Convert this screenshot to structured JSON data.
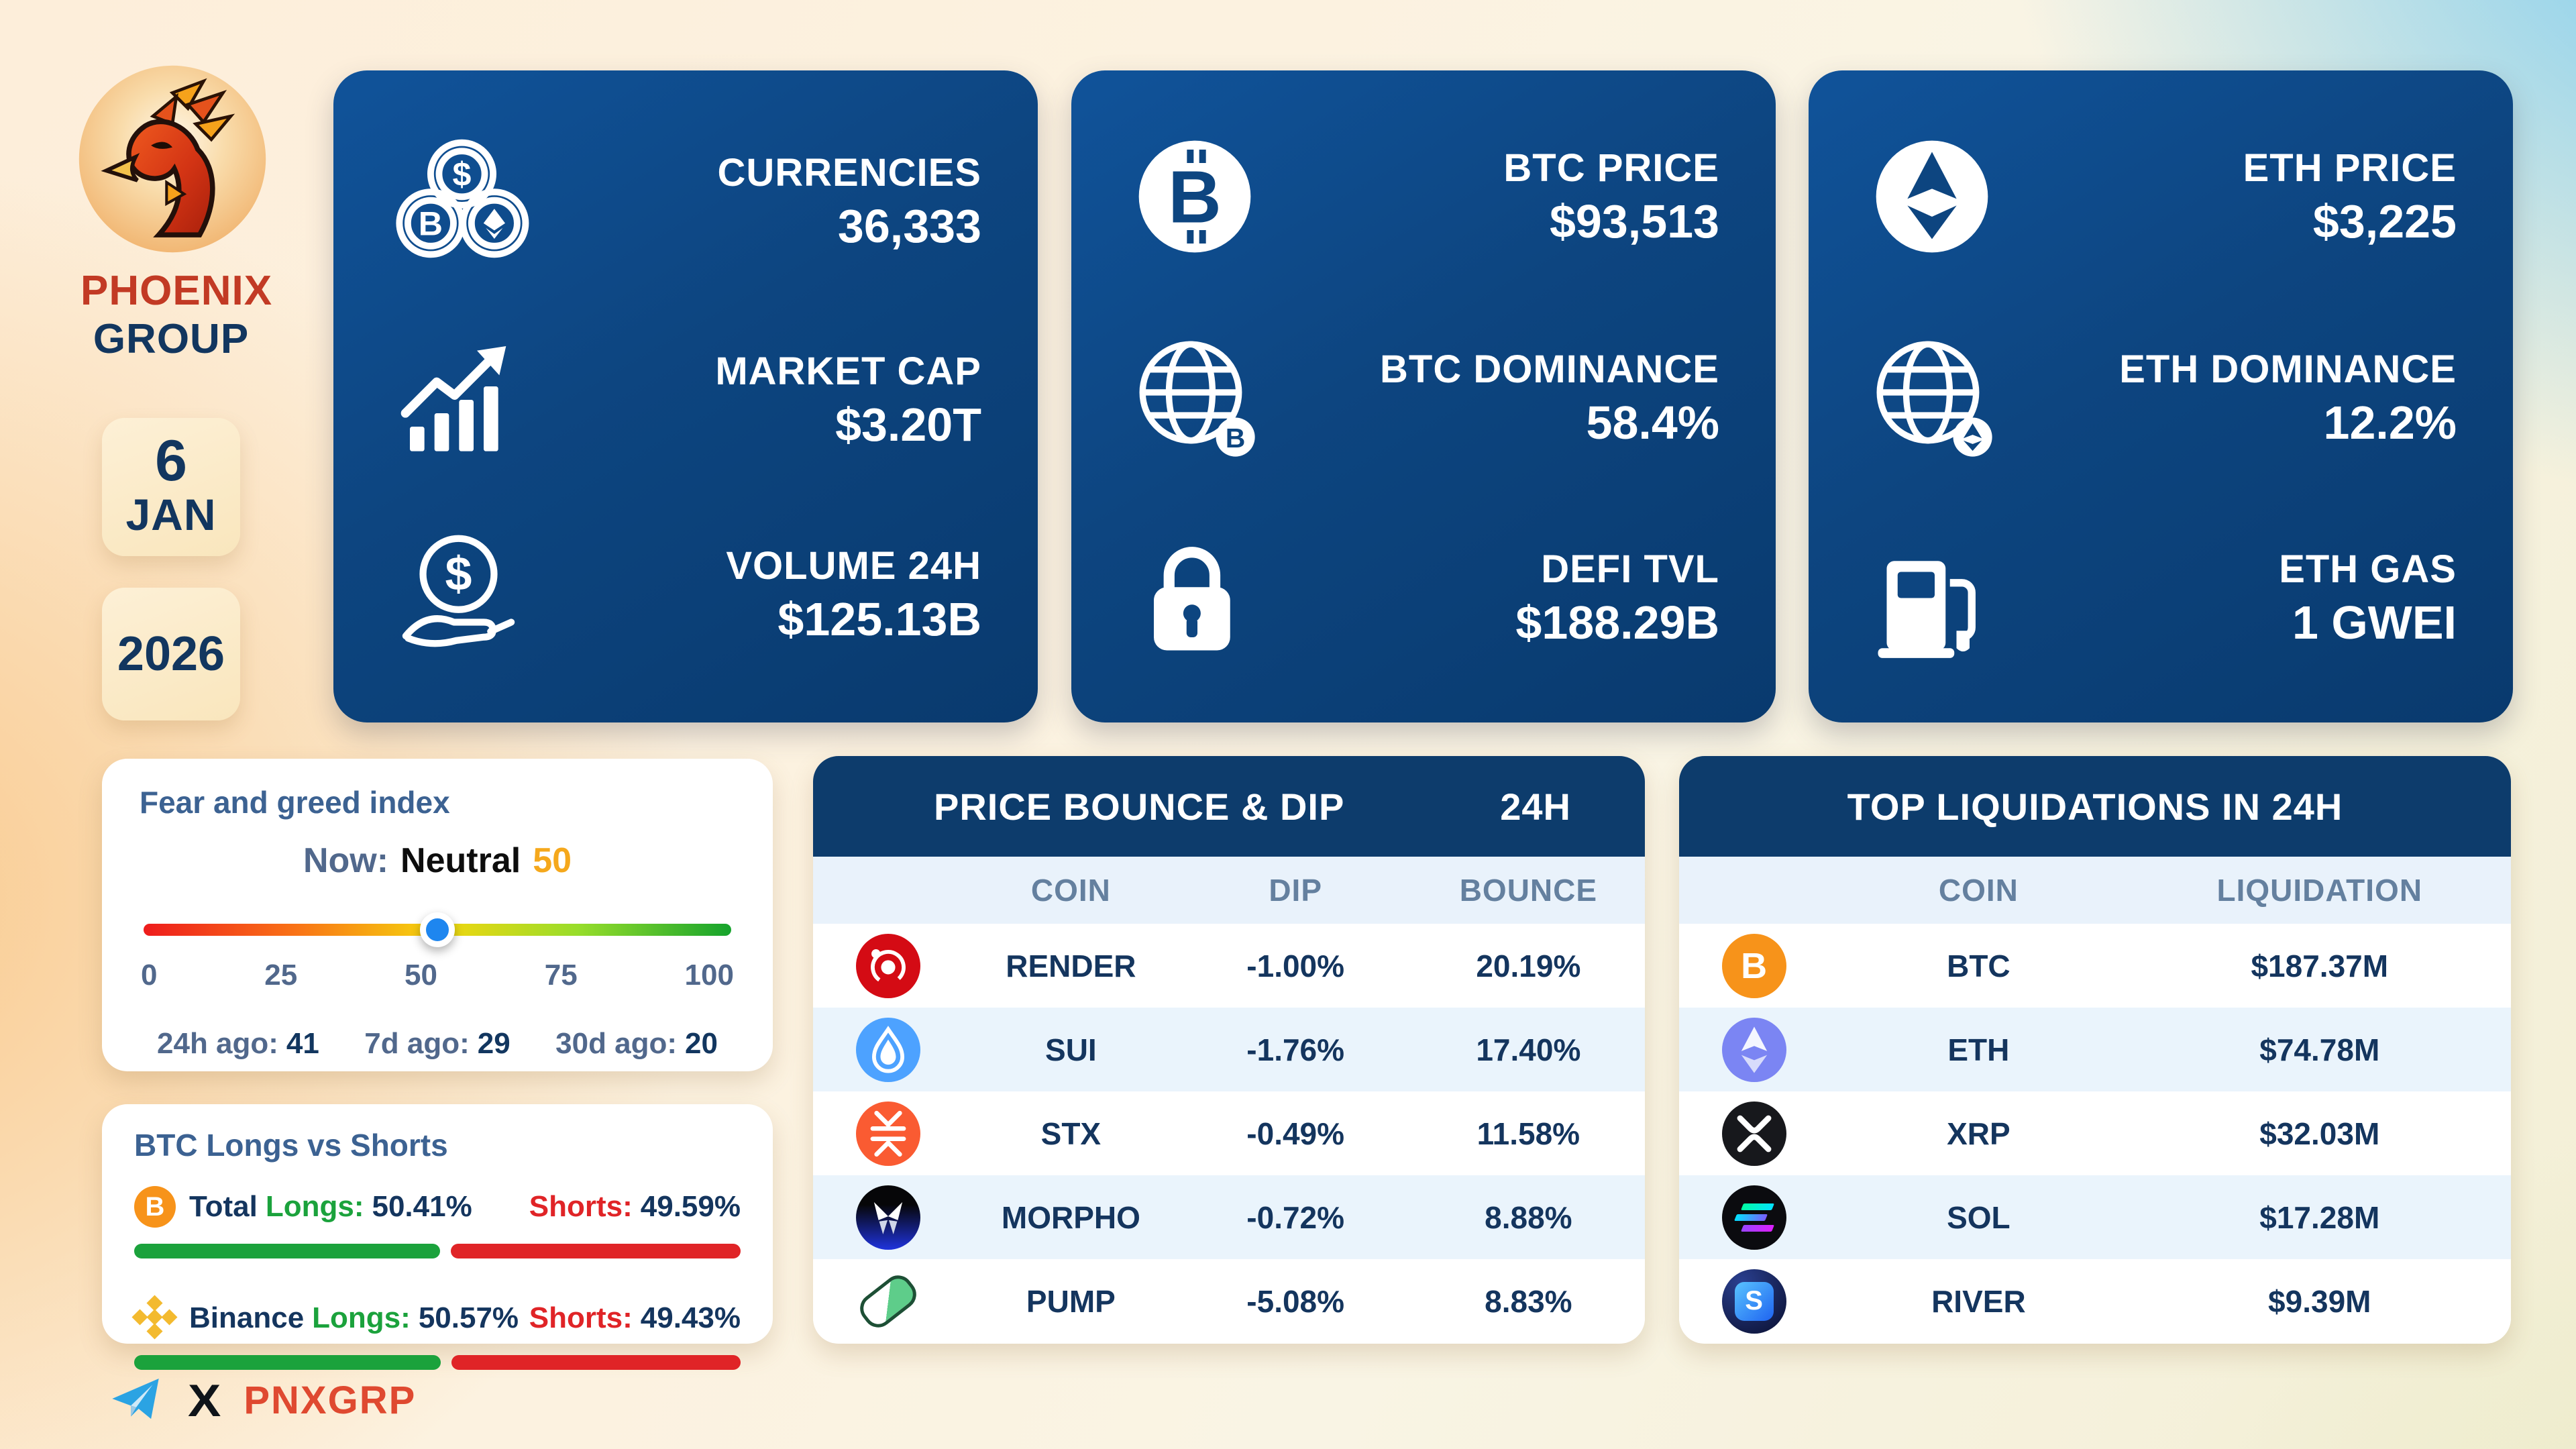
{
  "brand": {
    "line1": "PHOENIX",
    "line2": "GROUP"
  },
  "date": {
    "day": "6",
    "month": "JAN",
    "year": "2026"
  },
  "stat_cards": [
    {
      "rows": [
        {
          "icon": "currencies-coins-icon",
          "label": "CURRENCIES",
          "value": "36,333"
        },
        {
          "icon": "market-cap-chart-icon",
          "label": "MARKET CAP",
          "value": "$3.20T"
        },
        {
          "icon": "volume-hand-coin-icon",
          "label": "VOLUME 24H",
          "value": "$125.13B"
        }
      ]
    },
    {
      "rows": [
        {
          "icon": "bitcoin-circle-icon",
          "label": "BTC PRICE",
          "value": "$93,513"
        },
        {
          "icon": "globe-bitcoin-icon",
          "label": "BTC DOMINANCE",
          "value": "58.4%"
        },
        {
          "icon": "defi-lock-icon",
          "label": "DEFI TVL",
          "value": "$188.29B"
        }
      ]
    },
    {
      "rows": [
        {
          "icon": "ethereum-circle-icon",
          "label": "ETH PRICE",
          "value": "$3,225"
        },
        {
          "icon": "globe-ethereum-icon",
          "label": "ETH DOMINANCE",
          "value": "12.2%"
        },
        {
          "icon": "gas-pump-icon",
          "label": "ETH GAS",
          "value": "1 GWEI"
        }
      ]
    }
  ],
  "fear_greed": {
    "title": "Fear and greed index",
    "now_label": "Now:",
    "now_text": "Neutral",
    "now_value": "50",
    "now_value_num": 50,
    "scale": [
      "0",
      "25",
      "50",
      "75",
      "100"
    ],
    "history": [
      {
        "label": "24h ago:",
        "value": "41"
      },
      {
        "label": "7d ago:",
        "value": "29"
      },
      {
        "label": "30d ago:",
        "value": "20"
      }
    ]
  },
  "longs_shorts": {
    "title": "BTC Longs vs Shorts",
    "rows": [
      {
        "icon": "bitcoin-icon",
        "name": "Total",
        "longs_label": "Longs:",
        "longs": "50.41%",
        "longs_pct": 50.41,
        "shorts_label": "Shorts:",
        "shorts": "49.59%",
        "shorts_pct": 49.59
      },
      {
        "icon": "binance-icon",
        "name": "Binance",
        "longs_label": "Longs:",
        "longs": "50.57%",
        "longs_pct": 50.57,
        "shorts_label": "Shorts:",
        "shorts": "49.43%",
        "shorts_pct": 49.43
      }
    ]
  },
  "bounce_dip": {
    "title": "PRICE BOUNCE & DIP",
    "period": "24H",
    "columns": [
      "COIN",
      "DIP",
      "BOUNCE"
    ],
    "rows": [
      {
        "icon": "render-icon",
        "coin": "RENDER",
        "dip": "-1.00%",
        "bounce": "20.19%"
      },
      {
        "icon": "sui-icon",
        "coin": "SUI",
        "dip": "-1.76%",
        "bounce": "17.40%"
      },
      {
        "icon": "stacks-icon",
        "coin": "STX",
        "dip": "-0.49%",
        "bounce": "11.58%"
      },
      {
        "icon": "morpho-icon",
        "coin": "MORPHO",
        "dip": "-0.72%",
        "bounce": "8.88%"
      },
      {
        "icon": "pump-icon",
        "coin": "PUMP",
        "dip": "-5.08%",
        "bounce": "8.83%"
      }
    ]
  },
  "liquidations": {
    "title": "TOP LIQUIDATIONS IN 24H",
    "columns": [
      "COIN",
      "LIQUIDATION"
    ],
    "rows": [
      {
        "icon": "bitcoin-icon",
        "coin": "BTC",
        "value": "$187.37M"
      },
      {
        "icon": "ethereum-icon",
        "coin": "ETH",
        "value": "$74.78M"
      },
      {
        "icon": "xrp-icon",
        "coin": "XRP",
        "value": "$32.03M"
      },
      {
        "icon": "solana-icon",
        "coin": "SOL",
        "value": "$17.28M"
      },
      {
        "icon": "river-icon",
        "coin": "RIVER",
        "value": "$9.39M"
      }
    ]
  },
  "footer": {
    "handle": "PNXGRP"
  },
  "chart_data": [
    {
      "type": "gauge",
      "title": "Fear and greed index",
      "value": 50,
      "label": "Neutral",
      "range": [
        0,
        100
      ],
      "ticks": [
        0,
        25,
        50,
        75,
        100
      ],
      "history": {
        "24h_ago": 41,
        "7d_ago": 29,
        "30d_ago": 20
      }
    },
    {
      "type": "bar",
      "title": "BTC Longs vs Shorts",
      "categories": [
        "Total",
        "Binance"
      ],
      "series": [
        {
          "name": "Longs",
          "values": [
            50.41,
            50.57
          ]
        },
        {
          "name": "Shorts",
          "values": [
            49.59,
            49.43
          ]
        }
      ]
    },
    {
      "type": "table",
      "title": "PRICE BOUNCE & DIP 24H",
      "columns": [
        "COIN",
        "DIP",
        "BOUNCE"
      ],
      "rows": [
        [
          "RENDER",
          -1.0,
          20.19
        ],
        [
          "SUI",
          -1.76,
          17.4
        ],
        [
          "STX",
          -0.49,
          11.58
        ],
        [
          "MORPHO",
          -0.72,
          8.88
        ],
        [
          "PUMP",
          -5.08,
          8.83
        ]
      ]
    },
    {
      "type": "table",
      "title": "TOP LIQUIDATIONS IN 24H",
      "columns": [
        "COIN",
        "LIQUIDATION"
      ],
      "rows": [
        [
          "BTC",
          "$187.37M"
        ],
        [
          "ETH",
          "$74.78M"
        ],
        [
          "XRP",
          "$32.03M"
        ],
        [
          "SOL",
          "$17.28M"
        ],
        [
          "RIVER",
          "$9.39M"
        ]
      ]
    }
  ],
  "colors": {
    "card_navy": "#0d4580",
    "header_navy": "#0d3c6c",
    "navy_text": "#14355e",
    "steel": "#64809f",
    "green": "#1ba23c",
    "red": "#e02427",
    "amber": "#f5a81c",
    "bitcoin_orange": "#f7931a",
    "binance_yellow": "#f3ba2f",
    "telegram_blue": "#2ba3e3",
    "brand_red": "#c23a24",
    "handle_red": "#df4930"
  }
}
